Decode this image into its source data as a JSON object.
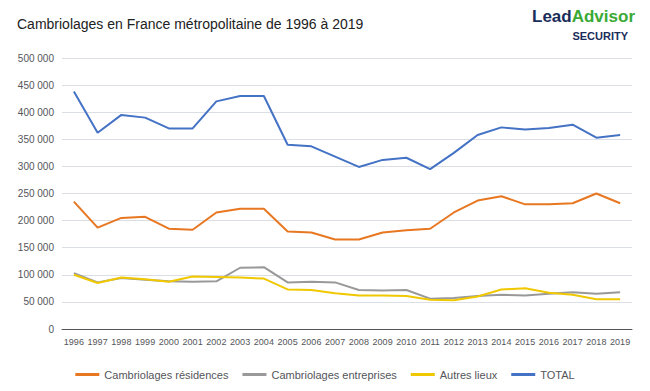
{
  "chart_data": {
    "type": "line",
    "title": "Cambriolages en France métropolitaine de 1996 à 2019",
    "x": [
      1996,
      1997,
      1998,
      1999,
      2000,
      2001,
      2002,
      2003,
      2004,
      2005,
      2006,
      2007,
      2008,
      2009,
      2010,
      2011,
      2012,
      2013,
      2014,
      2015,
      2016,
      2017,
      2018,
      2019
    ],
    "series": [
      {
        "name": "Cambriolages résidences",
        "color": "#E87722",
        "values": [
          235000,
          187000,
          205000,
          207000,
          185000,
          183000,
          215000,
          222000,
          222000,
          180000,
          178000,
          165000,
          165000,
          178000,
          182000,
          185000,
          215000,
          237000,
          245000,
          230000,
          230000,
          232000,
          250000,
          232000
        ]
      },
      {
        "name": "Cambriolages entreprises",
        "color": "#999999",
        "values": [
          103000,
          86000,
          94000,
          91000,
          88000,
          87000,
          88000,
          113000,
          114000,
          86000,
          87000,
          86000,
          72000,
          71000,
          72000,
          56000,
          57000,
          61000,
          63000,
          62000,
          65000,
          68000,
          65000,
          68000
        ]
      },
      {
        "name": "Autres lieux",
        "color": "#F0C800",
        "values": [
          100000,
          85000,
          95000,
          92000,
          87000,
          97000,
          96000,
          95000,
          93000,
          73000,
          72000,
          66000,
          62000,
          62000,
          61000,
          54000,
          53000,
          60000,
          73000,
          75000,
          67000,
          63000,
          55000,
          55000
        ]
      },
      {
        "name": "TOTAL",
        "color": "#4472C4",
        "values": [
          438000,
          362000,
          395000,
          390000,
          370000,
          370000,
          420000,
          430000,
          430000,
          340000,
          337000,
          318000,
          299000,
          312000,
          316000,
          295000,
          325000,
          358000,
          372000,
          368000,
          371000,
          377000,
          353000,
          358000
        ]
      }
    ],
    "xlim": [
      1995.5,
      2019.5
    ],
    "xticks": [
      1996,
      1997,
      1998,
      1999,
      2000,
      2001,
      2002,
      2003,
      2004,
      2005,
      2006,
      2007,
      2008,
      2009,
      2010,
      2011,
      2012,
      2013,
      2014,
      2015,
      2016,
      2017,
      2018,
      2019
    ],
    "ylim": [
      0,
      500000
    ],
    "yticks": [
      0,
      {
        "value": 50000,
        "label": "50 000"
      },
      {
        "value": 100000,
        "label": "100 000"
      },
      {
        "value": 150000,
        "label": "150 000"
      },
      {
        "value": 200000,
        "label": "200 000"
      },
      {
        "value": 250000,
        "label": "250 000"
      },
      {
        "value": 300000,
        "label": "300 000"
      },
      {
        "value": 350000,
        "label": "350 000"
      },
      {
        "value": 400000,
        "label": "400 000"
      },
      {
        "value": 450000,
        "label": "450 000"
      },
      {
        "value": 500000,
        "label": "500 000"
      }
    ],
    "grid": true,
    "legend": "bottom",
    "annotations": [
      {
        "text": "Lead",
        "color": "#1a2d5a"
      },
      {
        "text": "Advisor",
        "color": "#3aaa35"
      },
      {
        "text": "SECURITY",
        "color": "#1a2d5a"
      }
    ]
  }
}
